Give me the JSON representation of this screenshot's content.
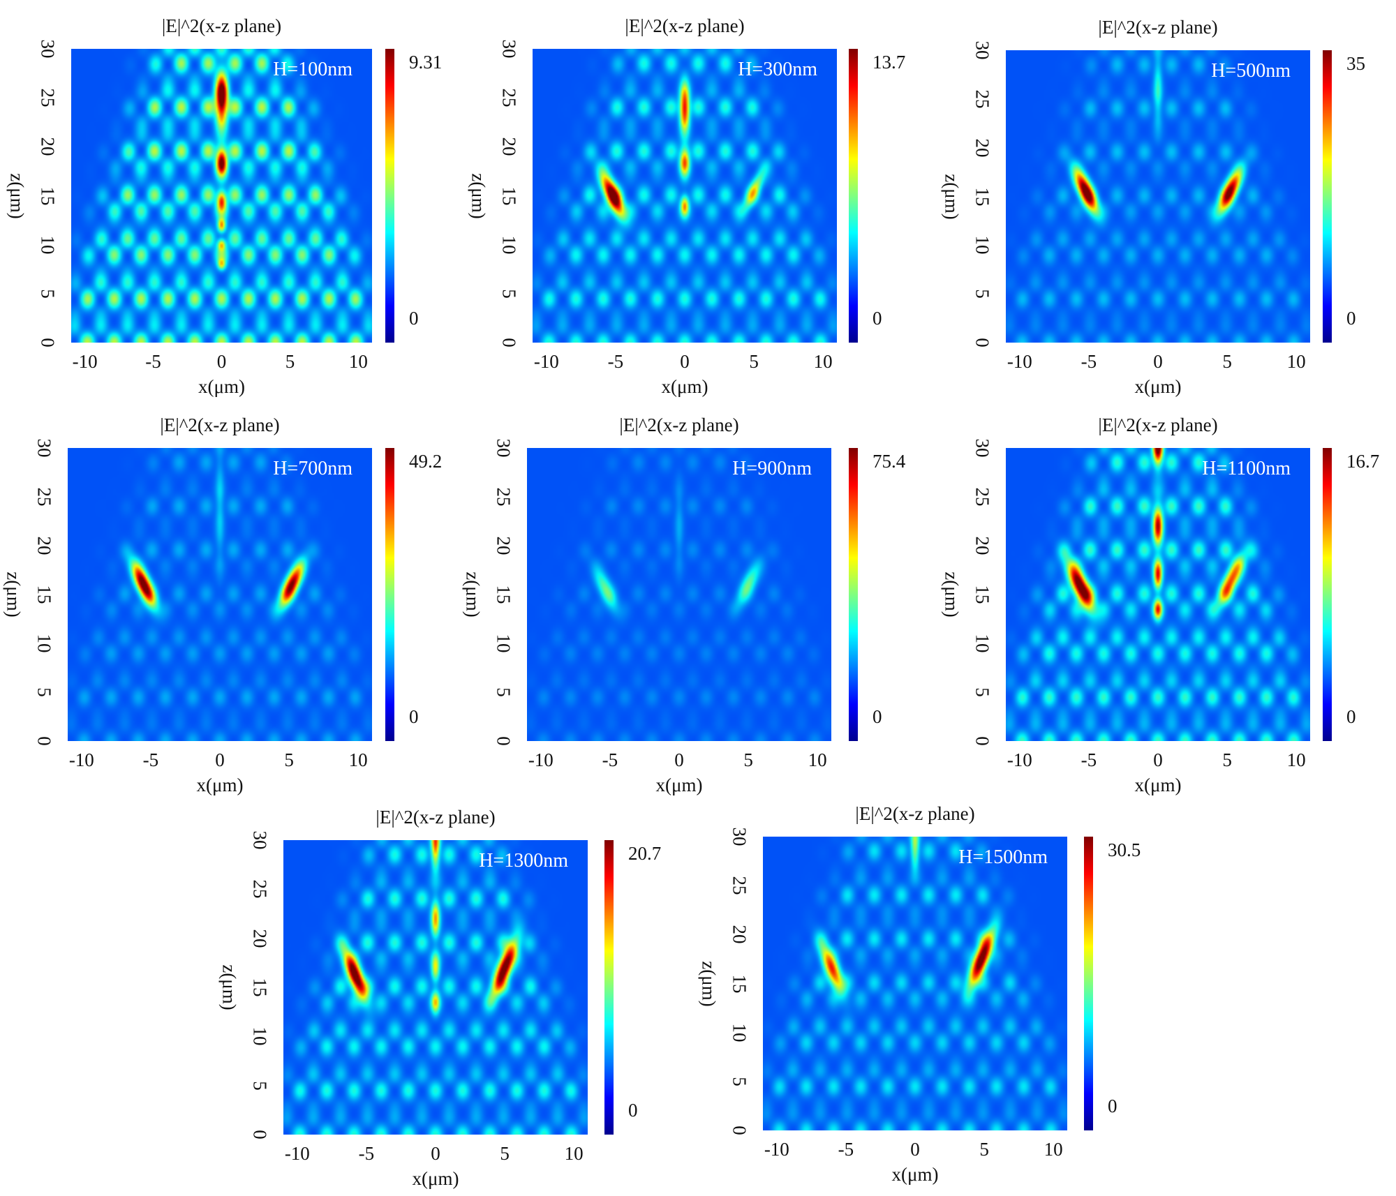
{
  "chart_data": [
    {
      "type": "heatmap",
      "title": "|E|^2(x-z plane)",
      "annotation": "H=100nm",
      "xlabel": "x(μm)",
      "ylabel": "z(μm)",
      "xlim": [
        -11,
        11
      ],
      "ylim": [
        0,
        30
      ],
      "xticks": [
        "-10",
        "-5",
        "0",
        "5",
        "10"
      ],
      "yticks": [
        "0",
        "5",
        "10",
        "15",
        "20",
        "25",
        "30"
      ],
      "colorbar": {
        "max": "9.31",
        "min": "0"
      },
      "background_level": 0.32,
      "hotspots": [
        {
          "x": 0,
          "z": 25,
          "i": 1.0,
          "w": 0.45,
          "l": 1.7,
          "tilt": 0
        },
        {
          "x": 0,
          "z": 18.5,
          "i": 0.85,
          "w": 0.4,
          "l": 1.0,
          "tilt": 0
        },
        {
          "x": 0,
          "z": 14.5,
          "i": 0.65,
          "w": 0.35,
          "l": 0.7,
          "tilt": 0
        },
        {
          "x": 0,
          "z": 12,
          "i": 0.55,
          "w": 0.3,
          "l": 0.5,
          "tilt": 0
        },
        {
          "x": 0,
          "z": 10,
          "i": 0.45,
          "w": 0.3,
          "l": 0.4,
          "tilt": 0
        },
        {
          "x": 0,
          "z": 8,
          "i": 0.4,
          "w": 0.3,
          "l": 0.4,
          "tilt": 0
        }
      ]
    },
    {
      "type": "heatmap",
      "title": "|E|^2(x-z plane)",
      "annotation": "H=300nm",
      "xlabel": "x(μm)",
      "ylabel": "z(μm)",
      "xlim": [
        -11,
        11
      ],
      "ylim": [
        0,
        30
      ],
      "xticks": [
        "-10",
        "-5",
        "0",
        "5",
        "10"
      ],
      "yticks": [
        "0",
        "5",
        "10",
        "15",
        "20",
        "25",
        "30"
      ],
      "colorbar": {
        "max": "13.7",
        "min": "0"
      },
      "background_level": 0.18,
      "hotspots": [
        {
          "x": -5.2,
          "z": 15,
          "i": 1.0,
          "w": 0.5,
          "l": 1.6,
          "tilt": 0.45
        },
        {
          "x": 0,
          "z": 24,
          "i": 0.75,
          "w": 0.35,
          "l": 1.6,
          "tilt": 0
        },
        {
          "x": 0,
          "z": 18.5,
          "i": 0.6,
          "w": 0.35,
          "l": 1.0,
          "tilt": 0
        },
        {
          "x": 0,
          "z": 14,
          "i": 0.5,
          "w": 0.3,
          "l": 0.7,
          "tilt": 0
        },
        {
          "x": 5,
          "z": 15.5,
          "i": 0.4,
          "w": 0.4,
          "l": 1.5,
          "tilt": -0.45
        }
      ]
    },
    {
      "type": "heatmap",
      "title": "|E|^2(x-z plane)",
      "annotation": "H=500nm",
      "xlabel": "x(μm)",
      "ylabel": "z(μm)",
      "xlim": [
        -11,
        11
      ],
      "ylim": [
        0,
        30
      ],
      "xticks": [
        "-10",
        "-5",
        "0",
        "5",
        "10"
      ],
      "yticks": [
        "0",
        "5",
        "10",
        "15",
        "20",
        "25",
        "30"
      ],
      "colorbar": {
        "max": "35",
        "min": "0"
      },
      "background_level": 0.1,
      "hotspots": [
        {
          "x": -5.2,
          "z": 15.5,
          "i": 1.0,
          "w": 0.5,
          "l": 1.6,
          "tilt": 0.45
        },
        {
          "x": 5.2,
          "z": 15.5,
          "i": 0.9,
          "w": 0.5,
          "l": 1.6,
          "tilt": -0.45
        },
        {
          "x": 0,
          "z": 26,
          "i": 0.2,
          "w": 0.3,
          "l": 2.5,
          "tilt": 0
        }
      ]
    },
    {
      "type": "heatmap",
      "title": "|E|^2(x-z plane)",
      "annotation": "H=700nm",
      "xlabel": "x(μm)",
      "ylabel": "z(μm)",
      "xlim": [
        -11,
        11
      ],
      "ylim": [
        0,
        30
      ],
      "xticks": [
        "-10",
        "-5",
        "0",
        "5",
        "10"
      ],
      "yticks": [
        "0",
        "5",
        "10",
        "15",
        "20",
        "25",
        "30"
      ],
      "colorbar": {
        "max": "49.2",
        "min": "0"
      },
      "background_level": 0.08,
      "hotspots": [
        {
          "x": -5.5,
          "z": 16,
          "i": 1.0,
          "w": 0.5,
          "l": 1.6,
          "tilt": 0.45
        },
        {
          "x": 5.2,
          "z": 16,
          "i": 0.9,
          "w": 0.5,
          "l": 1.6,
          "tilt": -0.45
        },
        {
          "x": 0,
          "z": 24,
          "i": 0.12,
          "w": 0.3,
          "l": 4,
          "tilt": 0
        }
      ]
    },
    {
      "type": "heatmap",
      "title": "|E|^2(x-z plane)",
      "annotation": "H=900nm",
      "xlabel": "x(μm)",
      "ylabel": "z(μm)",
      "xlim": [
        -11,
        11
      ],
      "ylim": [
        0,
        30
      ],
      "xticks": [
        "-10",
        "-5",
        "0",
        "5",
        "10"
      ],
      "yticks": [
        "0",
        "5",
        "10",
        "15",
        "20",
        "25",
        "30"
      ],
      "colorbar": {
        "max": "75.4",
        "min": "0"
      },
      "background_level": 0.05,
      "hotspots": [
        {
          "x": -5.3,
          "z": 15.5,
          "i": 0.3,
          "w": 0.5,
          "l": 1.6,
          "tilt": 0.45
        },
        {
          "x": 5,
          "z": 16,
          "i": 0.3,
          "w": 0.5,
          "l": 1.6,
          "tilt": -0.45
        },
        {
          "x": 0,
          "z": 22,
          "i": 0.08,
          "w": 0.3,
          "l": 3,
          "tilt": 0
        }
      ]
    },
    {
      "type": "heatmap",
      "title": "|E|^2(x-z plane)",
      "annotation": "H=1100nm",
      "xlabel": "x(μm)",
      "ylabel": "z(μm)",
      "xlim": [
        -11,
        11
      ],
      "ylim": [
        0,
        30
      ],
      "xticks": [
        "-10",
        "-5",
        "0",
        "5",
        "10"
      ],
      "yticks": [
        "0",
        "5",
        "10",
        "15",
        "20",
        "25",
        "30"
      ],
      "colorbar": {
        "max": "16.7",
        "min": "0"
      },
      "background_level": 0.2,
      "hotspots": [
        {
          "x": -5.6,
          "z": 15.8,
          "i": 1.0,
          "w": 0.55,
          "l": 1.8,
          "tilt": 0.45
        },
        {
          "x": 5.3,
          "z": 16.5,
          "i": 0.65,
          "w": 0.5,
          "l": 1.8,
          "tilt": -0.45
        },
        {
          "x": 0,
          "z": 30,
          "i": 0.9,
          "w": 0.35,
          "l": 1.2,
          "tilt": 0
        },
        {
          "x": 0,
          "z": 22,
          "i": 0.75,
          "w": 0.35,
          "l": 1.4,
          "tilt": 0
        },
        {
          "x": 0,
          "z": 17,
          "i": 0.7,
          "w": 0.3,
          "l": 1.0,
          "tilt": 0
        },
        {
          "x": 0,
          "z": 13.5,
          "i": 0.6,
          "w": 0.3,
          "l": 0.7,
          "tilt": 0
        }
      ]
    },
    {
      "type": "heatmap",
      "title": "|E|^2(x-z plane)",
      "annotation": "H=1300nm",
      "xlabel": "x(μm)",
      "ylabel": "z(μm)",
      "xlim": [
        -11,
        11
      ],
      "ylim": [
        0,
        30
      ],
      "xticks": [
        "-10",
        "-5",
        "0",
        "5",
        "10"
      ],
      "yticks": [
        "0",
        "5",
        "10",
        "15",
        "20",
        "25",
        "30"
      ],
      "colorbar": {
        "max": "20.7",
        "min": "0"
      },
      "background_level": 0.18,
      "hotspots": [
        {
          "x": -5.8,
          "z": 16.2,
          "i": 1.0,
          "w": 0.5,
          "l": 1.8,
          "tilt": 0.4
        },
        {
          "x": 5,
          "z": 17,
          "i": 1.0,
          "w": 0.5,
          "l": 2.0,
          "tilt": -0.4
        },
        {
          "x": 0,
          "z": 29.5,
          "i": 0.6,
          "w": 0.3,
          "l": 1.5,
          "tilt": 0
        },
        {
          "x": 0,
          "z": 22,
          "i": 0.5,
          "w": 0.3,
          "l": 1.3,
          "tilt": 0
        },
        {
          "x": 0,
          "z": 17,
          "i": 0.4,
          "w": 0.3,
          "l": 1.0,
          "tilt": 0
        },
        {
          "x": 0,
          "z": 13.5,
          "i": 0.4,
          "w": 0.3,
          "l": 0.8,
          "tilt": 0
        }
      ]
    },
    {
      "type": "heatmap",
      "title": "|E|^2(x-z plane)",
      "annotation": "H=1500nm",
      "xlabel": "x(μm)",
      "ylabel": "z(μm)",
      "xlim": [
        -11,
        11
      ],
      "ylim": [
        0,
        30
      ],
      "xticks": [
        "-10",
        "-5",
        "0",
        "5",
        "10"
      ],
      "yticks": [
        "0",
        "5",
        "10",
        "15",
        "20",
        "25",
        "30"
      ],
      "colorbar": {
        "max": "30.5",
        "min": "0"
      },
      "background_level": 0.14,
      "hotspots": [
        {
          "x": -6,
          "z": 16.5,
          "i": 0.7,
          "w": 0.5,
          "l": 1.8,
          "tilt": 0.4
        },
        {
          "x": 4.8,
          "z": 17.5,
          "i": 1.0,
          "w": 0.5,
          "l": 2.0,
          "tilt": -0.4
        },
        {
          "x": 0,
          "z": 29,
          "i": 0.35,
          "w": 0.3,
          "l": 1.5,
          "tilt": 0
        }
      ]
    }
  ]
}
